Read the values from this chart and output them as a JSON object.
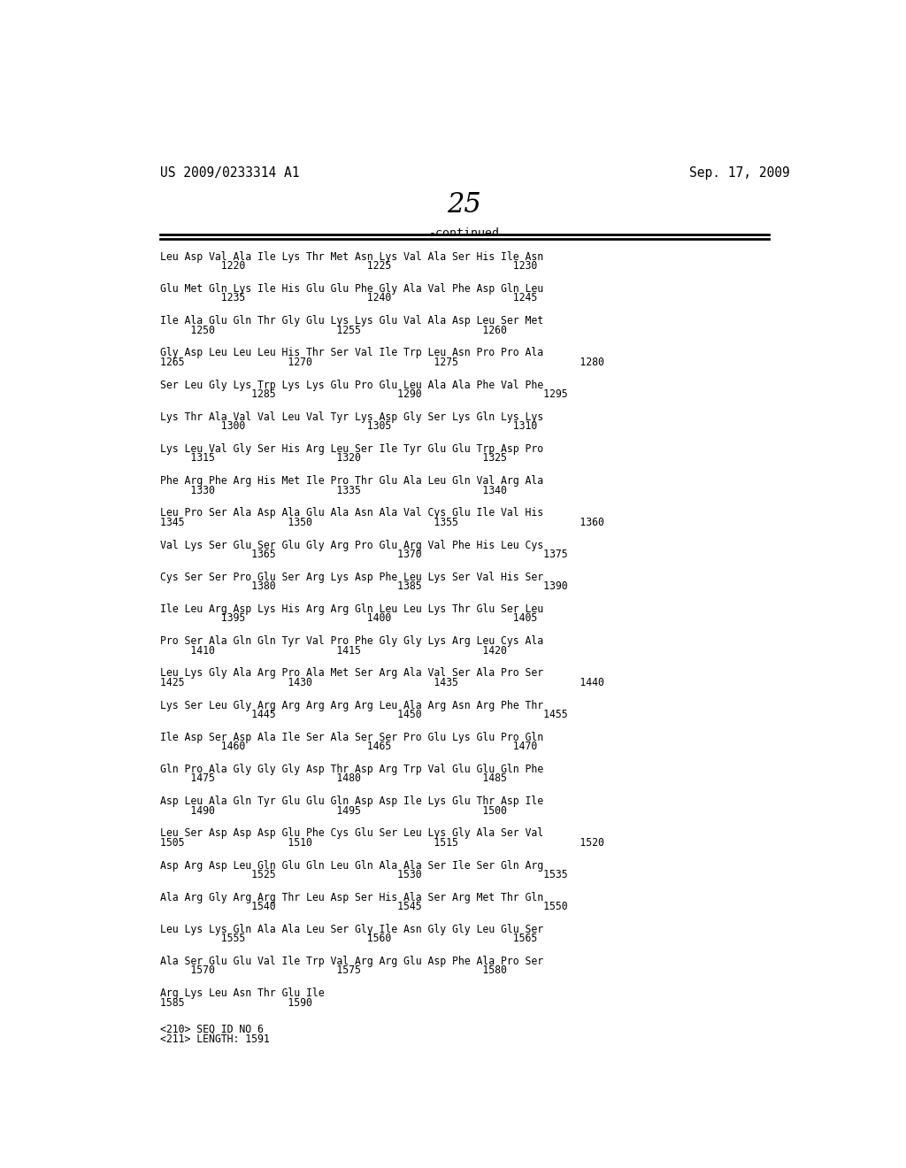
{
  "patent_number": "US 2009/0233314 A1",
  "patent_date": "Sep. 17, 2009",
  "page_number": "25",
  "continued_label": "-continued",
  "background_color": "#ffffff",
  "text_color": "#000000",
  "content_blocks": [
    [
      "Leu Asp Val Ala Ile Lys Thr Met Asn Lys Val Ala Ser His Ile Asn",
      "          1220                    1225                    1230"
    ],
    [
      "Glu Met Gln Lys Ile His Glu Glu Phe Gly Ala Val Phe Asp Gln Leu",
      "          1235                    1240                    1245"
    ],
    [
      "Ile Ala Glu Gln Thr Gly Glu Lys Lys Glu Val Ala Asp Leu Ser Met",
      "     1250                    1255                    1260"
    ],
    [
      "Gly Asp Leu Leu Leu His Thr Ser Val Ile Trp Leu Asn Pro Pro Ala",
      "1265                 1270                    1275                    1280"
    ],
    [
      "Ser Leu Gly Lys Trp Lys Lys Glu Pro Glu Leu Ala Ala Phe Val Phe",
      "               1285                    1290                    1295"
    ],
    [
      "Lys Thr Ala Val Val Leu Val Tyr Lys Asp Gly Ser Lys Gln Lys Lys",
      "          1300                    1305                    1310"
    ],
    [
      "Lys Leu Val Gly Ser His Arg Leu Ser Ile Tyr Glu Glu Trp Asp Pro",
      "     1315                    1320                    1325"
    ],
    [
      "Phe Arg Phe Arg His Met Ile Pro Thr Glu Ala Leu Gln Val Arg Ala",
      "     1330                    1335                    1340"
    ],
    [
      "Leu Pro Ser Ala Asp Ala Glu Ala Asn Ala Val Cys Glu Ile Val His",
      "1345                 1350                    1355                    1360"
    ],
    [
      "Val Lys Ser Glu Ser Glu Gly Arg Pro Glu Arg Val Phe His Leu Cys",
      "               1365                    1370                    1375"
    ],
    [
      "Cys Ser Ser Pro Glu Ser Arg Lys Asp Phe Leu Lys Ser Val His Ser",
      "               1380                    1385                    1390"
    ],
    [
      "Ile Leu Arg Asp Lys His Arg Arg Gln Leu Leu Lys Thr Glu Ser Leu",
      "          1395                    1400                    1405"
    ],
    [
      "Pro Ser Ala Gln Gln Tyr Val Pro Phe Gly Gly Lys Arg Leu Cys Ala",
      "     1410                    1415                    1420"
    ],
    [
      "Leu Lys Gly Ala Arg Pro Ala Met Ser Arg Ala Val Ser Ala Pro Ser",
      "1425                 1430                    1435                    1440"
    ],
    [
      "Lys Ser Leu Gly Arg Arg Arg Arg Arg Leu Ala Arg Asn Arg Phe Thr",
      "               1445                    1450                    1455"
    ],
    [
      "Ile Asp Ser Asp Ala Ile Ser Ala Ser Ser Pro Glu Lys Glu Pro Gln",
      "          1460                    1465                    1470"
    ],
    [
      "Gln Pro Ala Gly Gly Gly Asp Thr Asp Arg Trp Val Glu Glu Gln Phe",
      "     1475                    1480                    1485"
    ],
    [
      "Asp Leu Ala Gln Tyr Glu Glu Gln Asp Asp Ile Lys Glu Thr Asp Ile",
      "     1490                    1495                    1500"
    ],
    [
      "Leu Ser Asp Asp Asp Glu Phe Cys Glu Ser Leu Lys Gly Ala Ser Val",
      "1505                 1510                    1515                    1520"
    ],
    [
      "Asp Arg Asp Leu Gln Glu Gln Leu Gln Ala Ala Ser Ile Ser Gln Arg",
      "               1525                    1530                    1535"
    ],
    [
      "Ala Arg Gly Arg Arg Thr Leu Asp Ser His Ala Ser Arg Met Thr Gln",
      "               1540                    1545                    1550"
    ],
    [
      "Leu Lys Lys Gln Ala Ala Leu Ser Gly Ile Asn Gly Gly Leu Glu Ser",
      "          1555                    1560                    1565"
    ],
    [
      "Ala Ser Glu Glu Val Ile Trp Val Arg Arg Glu Asp Phe Ala Pro Ser",
      "     1570                    1575                    1580"
    ],
    [
      "Arg Lys Leu Asn Thr Glu Ile",
      "1585                 1590"
    ]
  ],
  "meta_lines": [
    "<210> SEQ ID NO 6",
    "<211> LENGTH: 1591"
  ]
}
